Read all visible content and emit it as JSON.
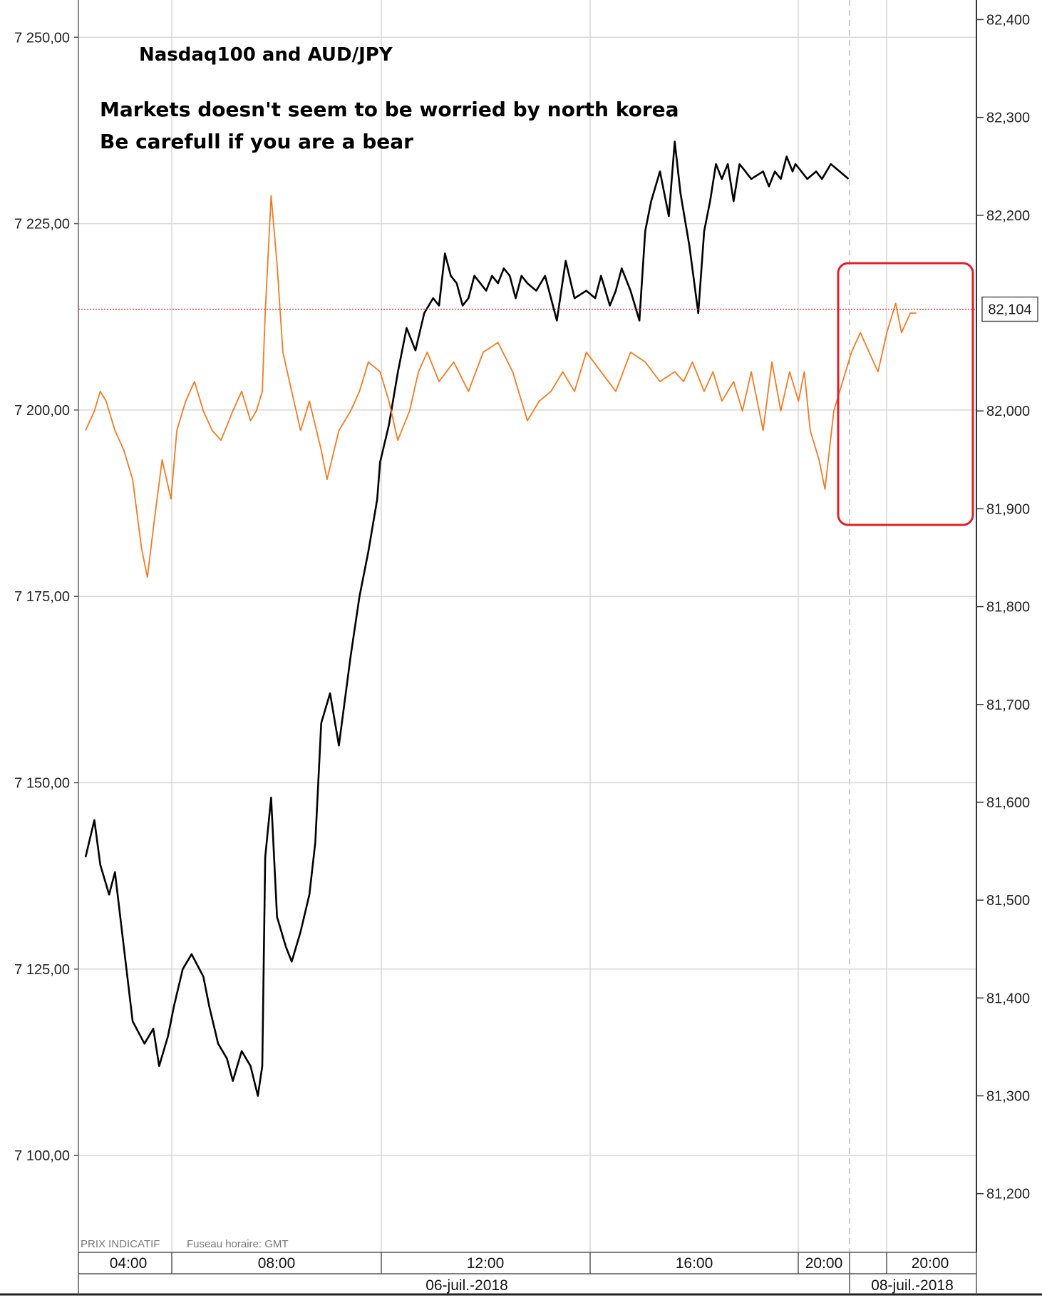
{
  "chart_data": {
    "type": "line",
    "title": "Nasdaq100 and AUD/JPY",
    "annotations": [
      "Markets doesn't seem to be worried by north korea",
      "Be carefull if you are a bear"
    ],
    "footer": {
      "price_note": "PRIX INDICATIF",
      "timezone": "Fuseau horaire: GMT"
    },
    "left_axis": {
      "ticks": [
        7250,
        7225,
        7200,
        7175,
        7150,
        7125,
        7100
      ],
      "tick_labels": [
        "7 250,00",
        "7 225,00",
        "7 200,00",
        "7 175,00",
        "7 150,00",
        "7 125,00",
        "7 100,00"
      ],
      "range": [
        7087,
        7255
      ]
    },
    "right_axis": {
      "ticks": [
        82.4,
        82.3,
        82.2,
        82.0,
        81.9,
        81.8,
        81.7,
        81.6,
        81.5,
        81.4,
        81.3,
        81.2
      ],
      "tick_labels": [
        "82,400",
        "82,300",
        "82,200",
        "82,000",
        "81,900",
        "81,800",
        "81,700",
        "81,600",
        "81,500",
        "81,400",
        "81,300",
        "81,200"
      ],
      "range": [
        81.14,
        82.42
      ],
      "current_value": 82.104,
      "current_label": "82,104"
    },
    "x_axis": {
      "time_labels": [
        "04:00",
        "08:00",
        "12:00",
        "16:00",
        "20:00",
        "20:00"
      ],
      "date_labels": [
        "06-juil.-2018",
        "08-juil.-2018"
      ]
    },
    "series": [
      {
        "name": "Nasdaq100",
        "axis": "left",
        "color": "#000000",
        "x": [
          0,
          0.3,
          0.5,
          0.8,
          1,
          1.3,
          1.6,
          2,
          2.3,
          2.5,
          2.8,
          3,
          3.3,
          3.6,
          4,
          4.2,
          4.5,
          4.8,
          5,
          5.3,
          5.6,
          5.85,
          6,
          6.1,
          6.3,
          6.5,
          6.8,
          7,
          7.3,
          7.6,
          7.8,
          8,
          8.3,
          8.6,
          9,
          9.3,
          9.6,
          9.9,
          10,
          10.3,
          10.6,
          10.9,
          11.2,
          11.5,
          11.8,
          12,
          12.2,
          12.4,
          12.6,
          12.8,
          13,
          13.2,
          13.4,
          13.6,
          13.8,
          14,
          14.2,
          14.4,
          14.6,
          14.8,
          15,
          15.3,
          15.6,
          16,
          16.3,
          16.6,
          17,
          17.3,
          17.5,
          17.8,
          18,
          18.2,
          18.5,
          18.8,
          19,
          19.2,
          19.5,
          19.8,
          20,
          20.2,
          20.5,
          20.8,
          21,
          21.2,
          21.4,
          21.6,
          21.8,
          22,
          22.2,
          22.4,
          22.6,
          23,
          23.2,
          23.4,
          23.6,
          23.8,
          24,
          24.1,
          24.3,
          24.5,
          24.8,
          25,
          25.3,
          25.6,
          25.9
        ],
        "values": [
          7140,
          7145,
          7139,
          7135,
          7138,
          7128,
          7118,
          7115,
          7117,
          7112,
          7116,
          7120,
          7125,
          7127,
          7124,
          7120,
          7115,
          7113,
          7110,
          7114,
          7112,
          7108,
          7112,
          7140,
          7148,
          7132,
          7128,
          7126,
          7130,
          7135,
          7142,
          7158,
          7162,
          7155,
          7167,
          7175,
          7181,
          7188,
          7193,
          7198,
          7205,
          7211,
          7208,
          7213,
          7215,
          7214,
          7221,
          7218,
          7217,
          7214,
          7215,
          7218,
          7217,
          7216,
          7218,
          7217,
          7219,
          7218,
          7215,
          7218,
          7217,
          7216,
          7218,
          7212,
          7220,
          7215,
          7216,
          7215,
          7218,
          7214,
          7216,
          7219,
          7216,
          7212,
          7224,
          7228,
          7232,
          7226,
          7236,
          7229,
          7222,
          7213,
          7224,
          7228,
          7233,
          7231,
          7233,
          7228,
          7233,
          7232,
          7231,
          7232,
          7230,
          7232,
          7231,
          7234,
          7232,
          7233,
          7232,
          7231,
          7232,
          7231,
          7233,
          7232,
          7231
        ]
      },
      {
        "name": "AUD/JPY",
        "axis": "right",
        "color": "#f07b24",
        "x": [
          0,
          0.3,
          0.5,
          0.7,
          1,
          1.3,
          1.6,
          1.9,
          2.1,
          2.3,
          2.6,
          2.9,
          3.1,
          3.4,
          3.7,
          4,
          4.3,
          4.6,
          5,
          5.3,
          5.6,
          5.8,
          6,
          6.1,
          6.3,
          6.5,
          6.7,
          7,
          7.3,
          7.6,
          8,
          8.2,
          8.6,
          9,
          9.3,
          9.6,
          10,
          10.3,
          10.6,
          11,
          11.3,
          11.6,
          12,
          12.5,
          13,
          13.5,
          14,
          14.5,
          15,
          15.4,
          15.8,
          16.2,
          16.6,
          17,
          17.5,
          18,
          18.5,
          19,
          19.5,
          20,
          20.3,
          20.6,
          21,
          21.3,
          21.6,
          22,
          22.3,
          22.6,
          23,
          23.3,
          23.6,
          23.9,
          24.2,
          24.4,
          24.6,
          24.9,
          25.1,
          25.4,
          25.7,
          26,
          26.3,
          26.6,
          26.9,
          27.2,
          27.5,
          27.7,
          28,
          28.2
        ],
        "values": [
          81.98,
          82.0,
          82.02,
          82.01,
          81.98,
          81.96,
          81.93,
          81.86,
          81.83,
          81.88,
          81.95,
          81.91,
          81.98,
          82.01,
          82.03,
          82.0,
          81.98,
          81.97,
          82.0,
          82.02,
          81.99,
          82.0,
          82.02,
          82.1,
          82.22,
          82.15,
          82.06,
          82.02,
          81.98,
          82.01,
          81.96,
          81.93,
          81.98,
          82.0,
          82.02,
          82.05,
          82.04,
          82.01,
          81.97,
          82.0,
          82.04,
          82.06,
          82.03,
          82.05,
          82.02,
          82.06,
          82.07,
          82.04,
          81.99,
          82.01,
          82.02,
          82.04,
          82.02,
          82.06,
          82.04,
          82.02,
          82.06,
          82.05,
          82.03,
          82.04,
          82.03,
          82.05,
          82.02,
          82.04,
          82.01,
          82.03,
          82.0,
          82.04,
          81.98,
          82.05,
          82.0,
          82.04,
          82.01,
          82.04,
          81.98,
          81.95,
          81.92,
          82.0,
          82.03,
          82.06,
          82.08,
          82.06,
          82.04,
          82.08,
          82.11,
          82.08,
          82.1,
          82.1
        ]
      }
    ]
  }
}
